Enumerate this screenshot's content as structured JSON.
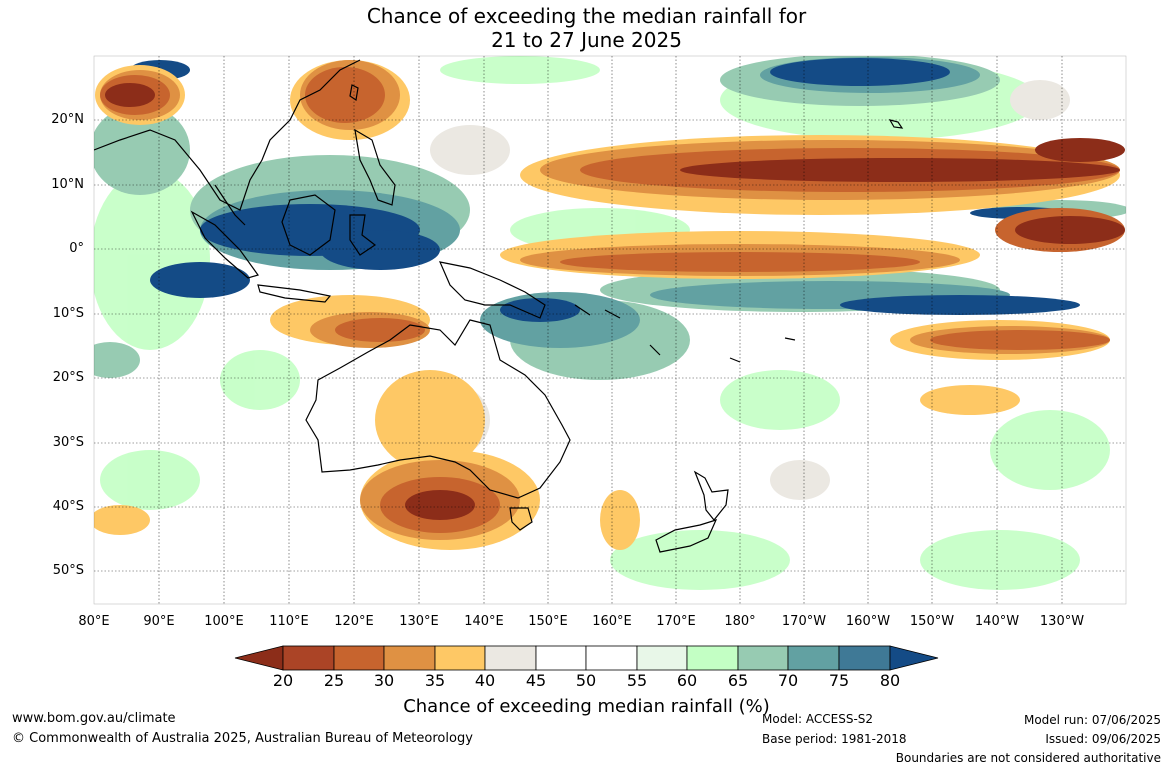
{
  "title": {
    "line1": "Chance of exceeding the median rainfall for",
    "line2": "21 to 27 June 2025"
  },
  "map": {
    "lat_labels": [
      "20°N",
      "10°N",
      "0°",
      "10°S",
      "20°S",
      "30°S",
      "40°S",
      "50°S"
    ],
    "lon_labels": [
      "80°E",
      "90°E",
      "100°E",
      "110°E",
      "120°E",
      "130°E",
      "140°E",
      "150°E",
      "160°E",
      "170°E",
      "180°",
      "170°W",
      "160°W",
      "150°W",
      "140°W",
      "130°W"
    ]
  },
  "colorbar": {
    "ticks": [
      "20",
      "25",
      "30",
      "35",
      "40",
      "45",
      "50",
      "55",
      "60",
      "65",
      "70",
      "75",
      "80"
    ],
    "colors": {
      "below_20": "#8c2d19",
      "20_25": "#ab4426",
      "25_30": "#c7642e",
      "30_35": "#df9143",
      "35_40": "#fec865",
      "40_45": "#ebe8e2",
      "45_50": "#ffffff",
      "50_55": "#ffffff",
      "55_60": "#e8f7e8",
      "60_65": "#c3ffc4",
      "65_70": "#97cbb2",
      "70_75": "#62a1a2",
      "75_80": "#3f7996",
      "above_80": "#144b86"
    },
    "label": "Chance of exceeding median rainfall (%)"
  },
  "footer": {
    "website": "www.bom.gov.au/climate",
    "copyright": "© Commonwealth of Australia 2025, Australian Bureau of Meteorology",
    "model": "Model: ACCESS-S2",
    "base_period": "Base period: 1981-2018",
    "model_run": "Model run: 07/06/2025",
    "issued": "Issued: 09/06/2025",
    "disclaimer": "Boundaries are not considered authoritative"
  }
}
